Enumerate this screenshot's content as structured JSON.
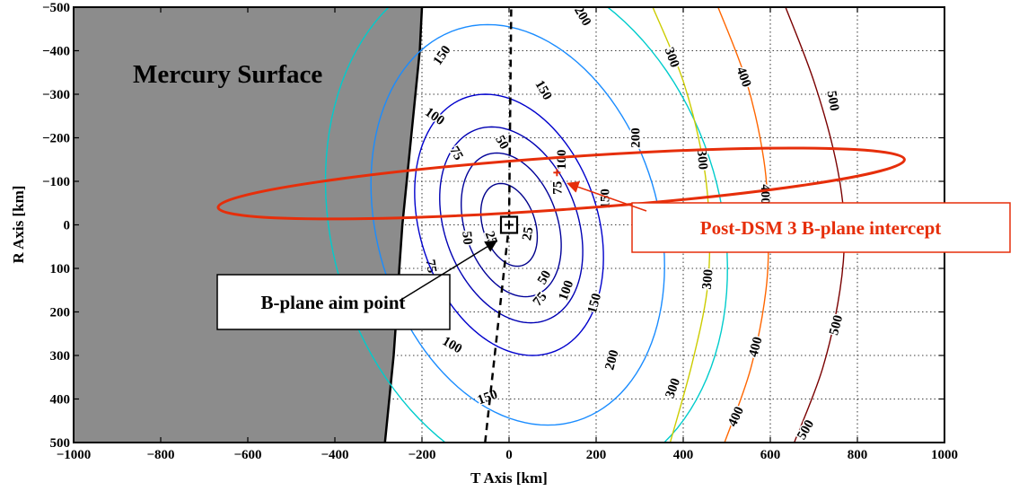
{
  "chart_data": {
    "type": "contour",
    "xlabel": "T Axis [km]",
    "ylabel": "R Axis [km]",
    "xlim": [
      -1000,
      1000
    ],
    "ylim": [
      -500,
      500
    ],
    "y_reversed": true,
    "grid": true,
    "xticks": [
      -1000,
      -800,
      -600,
      -400,
      -200,
      0,
      200,
      400,
      600,
      800,
      1000
    ],
    "yticks": [
      -500,
      -400,
      -300,
      -200,
      -100,
      0,
      100,
      200,
      300,
      400,
      500
    ],
    "xtick_labels": [
      "−1000",
      "−800",
      "−600",
      "−400",
      "−200",
      "0",
      "200",
      "400",
      "600",
      "800",
      "1000"
    ],
    "ytick_labels": [
      "−500",
      "−400",
      "−300",
      "−200",
      "−100",
      "0",
      "100",
      "200",
      "300",
      "400",
      "500"
    ],
    "surface": {
      "label": "Mercury Surface",
      "color": "#8c8c8c",
      "boundary": [
        [
          -200,
          -500
        ],
        [
          -205,
          -400
        ],
        [
          -215,
          -300
        ],
        [
          -225,
          -200
        ],
        [
          -235,
          -100
        ],
        [
          -245,
          0
        ],
        [
          -252,
          100
        ],
        [
          -258,
          200
        ],
        [
          -265,
          300
        ],
        [
          -275,
          400
        ],
        [
          -285,
          500
        ]
      ]
    },
    "contours": [
      {
        "level": 25,
        "color": "#00008b",
        "center": [
          0,
          0
        ],
        "a": 62,
        "b": 95,
        "tilt": 0.2,
        "labels": [
          {
            "text": "25",
            "x": -40,
            "y": 30,
            "rot": 70
          },
          {
            "text": "25",
            "x": 42,
            "y": 20,
            "rot": -80
          }
        ]
      },
      {
        "level": 50,
        "color": "#000099",
        "center": [
          5,
          0
        ],
        "a": 110,
        "b": 165,
        "tilt": 0.2,
        "labels": [
          {
            "text": "50",
            "x": -95,
            "y": 30,
            "rot": 85
          },
          {
            "text": "50",
            "x": 80,
            "y": 120,
            "rot": -60
          },
          {
            "text": "50",
            "x": -15,
            "y": -190,
            "rot": 60
          }
        ]
      },
      {
        "level": 75,
        "color": "#0000b3",
        "center": [
          5,
          0
        ],
        "a": 158,
        "b": 225,
        "tilt": 0.2,
        "labels": [
          {
            "text": "75",
            "x": -178,
            "y": 95,
            "rot": 80
          },
          {
            "text": "75",
            "x": 110,
            "y": -85,
            "rot": -90
          },
          {
            "text": "75",
            "x": 70,
            "y": 170,
            "rot": -50
          },
          {
            "text": "75",
            "x": -120,
            "y": -165,
            "rot": 60
          }
        ]
      },
      {
        "level": 100,
        "color": "#0000cc",
        "center": [
          0,
          0
        ],
        "a": 210,
        "b": 300,
        "tilt": 0.18,
        "labels": [
          {
            "text": "100",
            "x": -170,
            "y": -250,
            "rot": 35
          },
          {
            "text": "100",
            "x": 120,
            "y": -150,
            "rot": -90
          },
          {
            "text": "100",
            "x": 130,
            "y": 150,
            "rot": -70
          },
          {
            "text": "100",
            "x": -130,
            "y": 275,
            "rot": 30
          }
        ]
      },
      {
        "level": 150,
        "color": "#1a8cff",
        "center": [
          20,
          0
        ],
        "a": 330,
        "b": 460,
        "tilt": 0.15,
        "labels": [
          {
            "text": "150",
            "x": -155,
            "y": -390,
            "rot": -55
          },
          {
            "text": "150",
            "x": 80,
            "y": -310,
            "rot": 60
          },
          {
            "text": "150",
            "x": 195,
            "y": 180,
            "rot": -75
          },
          {
            "text": "150",
            "x": -50,
            "y": 395,
            "rot": -20
          },
          {
            "text": "150",
            "x": 220,
            "y": -60,
            "rot": -90
          }
        ]
      },
      {
        "level": 200,
        "color": "#00cccc",
        "center": [
          40,
          0
        ],
        "a": 455,
        "b": 600,
        "tilt": 0.13,
        "labels": [
          {
            "text": "200",
            "x": 170,
            "y": -480,
            "rot": 60
          },
          {
            "text": "200",
            "x": 290,
            "y": -200,
            "rot": -90
          },
          {
            "text": "200",
            "x": 235,
            "y": 310,
            "rot": -75
          }
        ]
      },
      {
        "level": 300,
        "color": "#cccc00",
        "line": [
          [
            330,
            -500
          ],
          [
            400,
            -330
          ],
          [
            445,
            -150
          ],
          [
            460,
            0
          ],
          [
            455,
            150
          ],
          [
            420,
            320
          ],
          [
            370,
            500
          ]
        ],
        "labels": [
          {
            "text": "300",
            "x": 375,
            "y": -385,
            "rot": 70
          },
          {
            "text": "300",
            "x": 445,
            "y": -150,
            "rot": 85
          },
          {
            "text": "300",
            "x": 455,
            "y": 125,
            "rot": -85
          },
          {
            "text": "300",
            "x": 375,
            "y": 375,
            "rot": -70
          }
        ]
      },
      {
        "level": 400,
        "color": "#ff6600",
        "line": [
          [
            480,
            -500
          ],
          [
            545,
            -330
          ],
          [
            585,
            -150
          ],
          [
            595,
            0
          ],
          [
            590,
            150
          ],
          [
            555,
            330
          ],
          [
            495,
            500
          ]
        ],
        "labels": [
          {
            "text": "400",
            "x": 540,
            "y": -340,
            "rot": 70
          },
          {
            "text": "400",
            "x": 590,
            "y": -70,
            "rot": 90
          },
          {
            "text": "400",
            "x": 565,
            "y": 280,
            "rot": -75
          },
          {
            "text": "400",
            "x": 520,
            "y": 440,
            "rot": -65
          }
        ]
      },
      {
        "level": 500,
        "color": "#7a0000",
        "line": [
          [
            635,
            -500
          ],
          [
            700,
            -330
          ],
          [
            750,
            -150
          ],
          [
            770,
            0
          ],
          [
            760,
            150
          ],
          [
            720,
            330
          ],
          [
            655,
            500
          ]
        ],
        "labels": [
          {
            "text": "500",
            "x": 745,
            "y": -285,
            "rot": 80
          },
          {
            "text": "500",
            "x": 750,
            "y": 230,
            "rot": -75
          },
          {
            "text": "500",
            "x": 680,
            "y": 470,
            "rot": -60
          }
        ]
      }
    ],
    "dashed_line": [
      [
        -55,
        500
      ],
      [
        0,
        0
      ],
      [
        5,
        -500
      ]
    ],
    "error_ellipse": {
      "color": "#e62e0a",
      "center": [
        120,
        -95
      ],
      "a": 790,
      "b": 60,
      "angle_deg": -4
    },
    "aim_point": {
      "x": 0,
      "y": 0
    },
    "intercept_point": {
      "x": 110,
      "y": -120
    },
    "annotations": {
      "surface_label": "Mercury Surface",
      "aim_label": "B-plane aim point",
      "intercept_label": "Post-DSM 3 B-plane intercept",
      "intercept_color": "#e62e0a"
    }
  }
}
